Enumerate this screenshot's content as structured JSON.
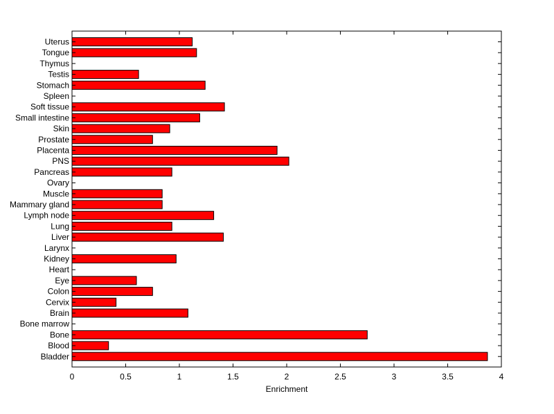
{
  "chart_data": {
    "type": "bar",
    "orientation": "horizontal",
    "categories": [
      "Uterus",
      "Tongue",
      "Thymus",
      "Testis",
      "Stomach",
      "Spleen",
      "Soft tissue",
      "Small intestine",
      "Skin",
      "Prostate",
      "Placenta",
      "PNS",
      "Pancreas",
      "Ovary",
      "Muscle",
      "Mammary gland",
      "Lymph node",
      "Lung",
      "Liver",
      "Larynx",
      "Kidney",
      "Heart",
      "Eye",
      "Colon",
      "Cervix",
      "Brain",
      "Bone marrow",
      "Bone",
      "Blood",
      "Bladder"
    ],
    "values": [
      1.12,
      1.16,
      0,
      0.62,
      1.24,
      0,
      1.42,
      1.19,
      0.91,
      0.75,
      1.91,
      2.02,
      0.93,
      0,
      0.84,
      0.84,
      1.32,
      0.93,
      1.41,
      0,
      0.97,
      0,
      0.6,
      0.75,
      0.41,
      1.08,
      0,
      2.75,
      0.34,
      3.87
    ],
    "xlabel": "Enrichment",
    "ylabel": "",
    "xlim": [
      0,
      4
    ],
    "xticks": [
      0,
      0.5,
      1,
      1.5,
      2,
      2.5,
      3,
      3.5,
      4
    ],
    "xtick_labels": [
      "0",
      "0.5",
      "1",
      "1.5",
      "2",
      "2.5",
      "3",
      "3.5",
      "4"
    ],
    "bar_color": "#ff0000",
    "grid": false,
    "legend": "none"
  }
}
